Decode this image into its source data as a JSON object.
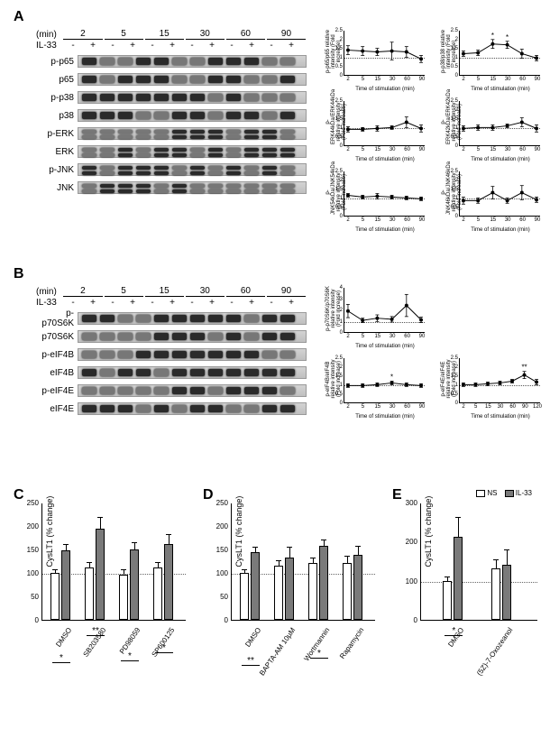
{
  "panelA": {
    "label": "A",
    "time_header": "(min)",
    "treatment_label": "IL-33",
    "timepoints": [
      "2",
      "5",
      "15",
      "30",
      "60",
      "90"
    ],
    "signs": [
      "-",
      "+"
    ],
    "proteins": [
      "p-p65",
      "p65",
      "p-p38",
      "p38",
      "p-ERK",
      "ERK",
      "p-JNK",
      "JNK"
    ],
    "charts": [
      {
        "ylab": "p-p65/p65\nrelative intensity\n(Fold increase)",
        "ylim": [
          0,
          2.5
        ],
        "dashed": 1,
        "x": [
          2,
          5,
          15,
          30,
          60,
          90
        ],
        "y": [
          1.4,
          1.35,
          1.3,
          1.35,
          1.3,
          0.9
        ],
        "err": [
          0.25,
          0.25,
          0.2,
          0.5,
          0.3,
          0.2
        ],
        "sig": {}
      },
      {
        "ylab": "p-p38/p38\nrelative intensity\n(Fold increase)",
        "ylim": [
          0,
          2.5
        ],
        "dashed": 1,
        "x": [
          2,
          5,
          15,
          30,
          60,
          90
        ],
        "y": [
          1.2,
          1.25,
          1.75,
          1.7,
          1.2,
          0.95
        ],
        "err": [
          0.15,
          0.15,
          0.25,
          0.2,
          0.25,
          0.15
        ],
        "sig": {
          "2": "*",
          "3": "*"
        }
      },
      {
        "ylab": "p-ERK44kDa/ERK44kDa\nrelative intensity\n(Fold increase)",
        "ylim": [
          0,
          2.5
        ],
        "dashed": 1,
        "x": [
          2,
          5,
          15,
          30,
          60,
          90
        ],
        "y": [
          0.9,
          0.9,
          0.95,
          1.0,
          1.3,
          0.95
        ],
        "err": [
          0.15,
          0.1,
          0.15,
          0.1,
          0.3,
          0.2
        ],
        "sig": {}
      },
      {
        "ylab": "p-ERK42kDa/ERK42kDa\nrelative intensity\n(Fold increase)",
        "ylim": [
          0,
          2.5
        ],
        "dashed": 1,
        "x": [
          2,
          5,
          15,
          30,
          60,
          90
        ],
        "y": [
          0.95,
          1.0,
          1.0,
          1.1,
          1.3,
          0.95
        ],
        "err": [
          0.15,
          0.15,
          0.15,
          0.1,
          0.25,
          0.2
        ],
        "sig": {}
      },
      {
        "ylab": "p-JNK54kDa/JNK54kDa\nrelative intensity\n(Fold increase)",
        "ylim": [
          0,
          2.5
        ],
        "dashed": 1,
        "x": [
          2,
          5,
          15,
          30,
          60,
          90
        ],
        "y": [
          1.15,
          1.05,
          1.1,
          1.05,
          1.0,
          0.95
        ],
        "err": [
          0.1,
          0.1,
          0.15,
          0.1,
          0.1,
          0.1
        ],
        "sig": {}
      },
      {
        "ylab": "p-JNK46kDa/JNK46kDa\nrelative intensity\n(Fold increase)",
        "ylim": [
          0,
          2.5
        ],
        "dashed": 1,
        "x": [
          2,
          5,
          15,
          30,
          60,
          90
        ],
        "y": [
          0.85,
          0.85,
          1.3,
          0.85,
          1.3,
          0.9
        ],
        "err": [
          0.2,
          0.15,
          0.35,
          0.15,
          0.4,
          0.15
        ],
        "sig": {}
      }
    ],
    "xlab": "Time of stimulation (min)"
  },
  "panelB": {
    "label": "B",
    "time_header": "(min)",
    "treatment_label": "IL-33",
    "timepoints": [
      "2",
      "5",
      "15",
      "30",
      "60",
      "90"
    ],
    "signs": [
      "-",
      "+"
    ],
    "proteins": [
      "p-p70S6K",
      "p70S6K",
      "p-eIF4B",
      "eIF4B",
      "p-eIF4E",
      "eIF4E"
    ],
    "charts": [
      {
        "ylab": "p-p70S6K/p70S6K\nrelative intensity\n(Fold increase)",
        "ylim": [
          0,
          4
        ],
        "dashed": 1,
        "x": [
          2,
          5,
          15,
          30,
          60,
          90
        ],
        "y": [
          1.9,
          1.05,
          1.25,
          1.15,
          2.4,
          1.1
        ],
        "err": [
          0.6,
          0.2,
          0.3,
          0.25,
          1.0,
          0.25
        ],
        "sig": {}
      },
      {
        "ylab": "p-eIF4B/eIF4B\nrelative intensity\n(Fold increase)",
        "ylim": [
          0,
          2.5
        ],
        "dashed": 1,
        "x": [
          2,
          5,
          15,
          30,
          60,
          90
        ],
        "y": [
          0.95,
          0.95,
          1.0,
          1.1,
          1.0,
          0.95
        ],
        "err": [
          0.1,
          0.1,
          0.1,
          0.1,
          0.1,
          0.1
        ],
        "sig": {
          "3": "*"
        }
      },
      {
        "ylab": "p-eIF4E/eIF4E\nrelative intensity\n(Fold increase)",
        "ylim": [
          0,
          2.5
        ],
        "dashed": 1,
        "x": [
          2,
          5,
          15,
          30,
          60,
          90,
          120
        ],
        "y": [
          1.0,
          1.0,
          1.05,
          1.1,
          1.2,
          1.55,
          1.15
        ],
        "err": [
          0.1,
          0.1,
          0.1,
          0.1,
          0.1,
          0.2,
          0.15
        ],
        "sig": {
          "5": "**"
        }
      }
    ],
    "xlab": "Time of stimulation (min)"
  },
  "legend": {
    "ns": "NS",
    "il": "IL-33"
  },
  "panelC": {
    "label": "C",
    "ylab": "CysLT1\n(% change)",
    "ylim": [
      0,
      250
    ],
    "ytick_step": 50,
    "dashed": 100,
    "groups": [
      {
        "name": "DMSO",
        "ns": 100,
        "il": 148,
        "ns_err": 6,
        "il_err": 12,
        "sig": "*"
      },
      {
        "name": "SB203580",
        "ns": 112,
        "il": 195,
        "ns_err": 10,
        "il_err": 22,
        "sig": "**"
      },
      {
        "name": "PD98059",
        "ns": 97,
        "il": 150,
        "ns_err": 8,
        "il_err": 14,
        "sig": "*"
      },
      {
        "name": "SP600125",
        "ns": 112,
        "il": 162,
        "ns_err": 10,
        "il_err": 18,
        "sig": "*"
      }
    ]
  },
  "panelD": {
    "label": "D",
    "ylab": "CysLT1\n(% change)",
    "ylim": [
      0,
      250
    ],
    "ytick_step": 50,
    "dashed": 100,
    "groups": [
      {
        "name": "DMSO",
        "ns": 100,
        "il": 144,
        "ns_err": 6,
        "il_err": 10,
        "sig": "**"
      },
      {
        "name": "BAPTA-AM 10µM",
        "ns": 115,
        "il": 132,
        "ns_err": 10,
        "il_err": 22,
        "sig": ""
      },
      {
        "name": "Wortmannin",
        "ns": 122,
        "il": 158,
        "ns_err": 8,
        "il_err": 12,
        "sig": "*"
      },
      {
        "name": "Rapamycin",
        "ns": 122,
        "il": 138,
        "ns_err": 12,
        "il_err": 18,
        "sig": ""
      }
    ]
  },
  "panelE": {
    "label": "E",
    "ylab": "CysLT1\n(% change)",
    "ylim": [
      0,
      300
    ],
    "ytick_step": 100,
    "dashed": 100,
    "groups": [
      {
        "name": "DMSO",
        "ns": 100,
        "il": 212,
        "ns_err": 8,
        "il_err": 48,
        "sig": "*"
      },
      {
        "name": "(5Z)-7-Oxozeanol",
        "ns": 132,
        "il": 140,
        "ns_err": 20,
        "il_err": 38,
        "sig": ""
      }
    ]
  },
  "colors": {
    "bar_ns": "#ffffff",
    "bar_il": "#7a7a7a",
    "border": "#000000",
    "bg": "#ffffff"
  }
}
